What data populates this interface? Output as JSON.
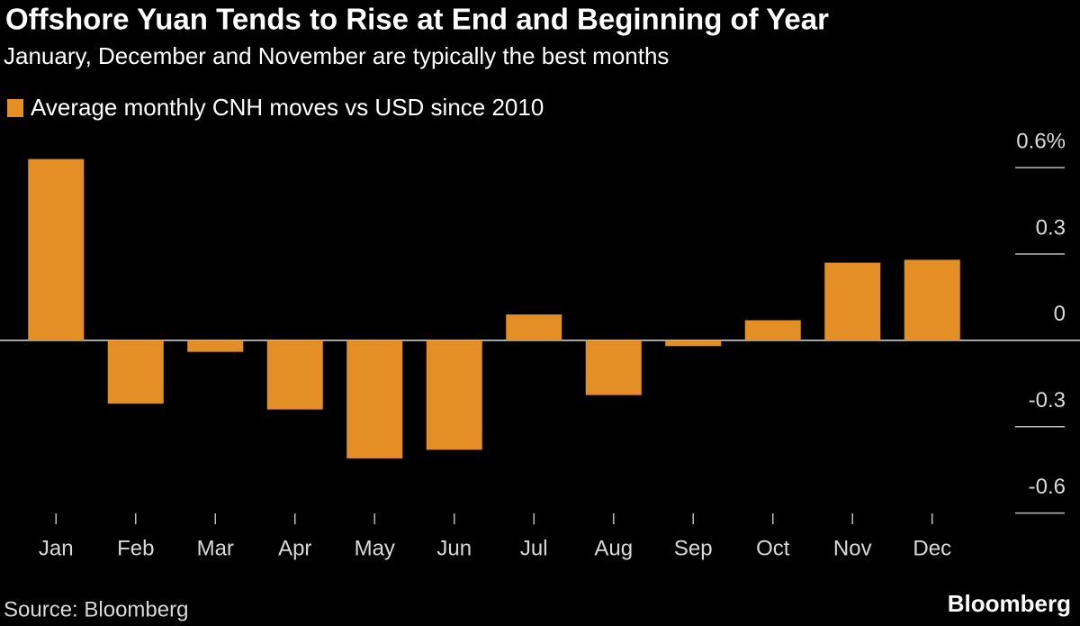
{
  "chart_data": {
    "type": "bar",
    "title": "Offshore Yuan Tends to Rise at End and Beginning of Year",
    "subtitle": "January, December and November are typically the best months",
    "categories": [
      "Jan",
      "Feb",
      "Mar",
      "Apr",
      "May",
      "Jun",
      "Jul",
      "Aug",
      "Sep",
      "Oct",
      "Nov",
      "Dec"
    ],
    "series": [
      {
        "name": "Average monthly CNH moves vs USD since 2010",
        "color": "#e48f26",
        "values": [
          0.63,
          -0.22,
          -0.04,
          -0.24,
          -0.41,
          -0.38,
          0.09,
          -0.19,
          -0.02,
          0.07,
          0.27,
          0.28
        ]
      }
    ],
    "ylim": [
      -0.62,
      0.66
    ],
    "yticks": [
      {
        "value": 0.6,
        "label": "0.6%"
      },
      0.3,
      0,
      -0.3,
      -0.6
    ],
    "grid": true,
    "legend": "top-left",
    "source": "Source: Bloomberg",
    "logo": "Bloomberg"
  }
}
